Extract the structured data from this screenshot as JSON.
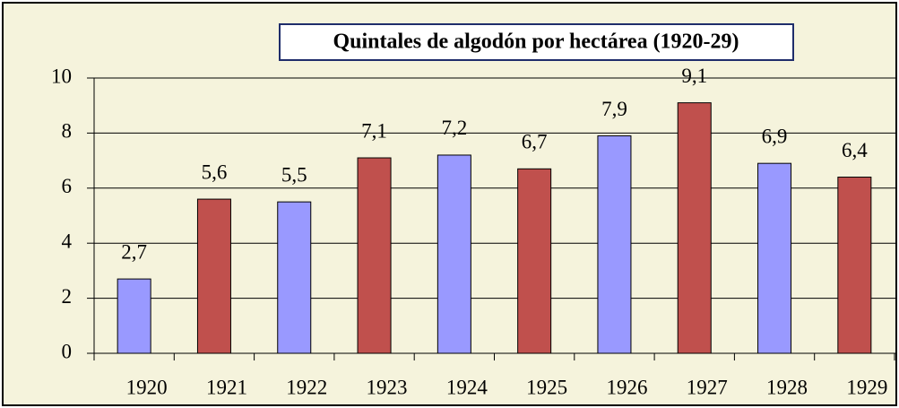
{
  "chart_data": {
    "type": "bar",
    "title": "Quintales de algodón por hectárea (1920-29)",
    "categories": [
      "1920",
      "1921",
      "1922",
      "1923",
      "1924",
      "1925",
      "1926",
      "1927",
      "1928",
      "1929"
    ],
    "values": [
      2.7,
      5.6,
      5.5,
      7.1,
      7.2,
      6.7,
      7.9,
      9.1,
      6.9,
      6.4
    ],
    "value_labels": [
      "2,7",
      "5,6",
      "5,5",
      "7,1",
      "7,2",
      "6,7",
      "7,9",
      "9,1",
      "6,9",
      "6,4"
    ],
    "colors": [
      "#9999ff",
      "#c0504d",
      "#9999ff",
      "#c0504d",
      "#9999ff",
      "#c0504d",
      "#9999ff",
      "#c0504d",
      "#9999ff",
      "#c0504d"
    ],
    "ylim": [
      0,
      10
    ],
    "yticks": [
      0,
      2,
      4,
      6,
      8,
      10
    ],
    "grid": true
  }
}
